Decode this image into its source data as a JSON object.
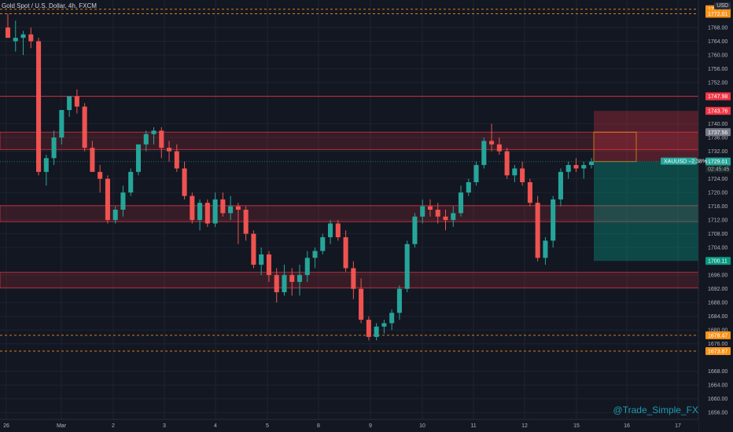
{
  "header": {
    "title": "Gold Spot / U.S. Dollar, 4h, FXCM"
  },
  "axis": {
    "currency": "USD",
    "price_labels": [
      "1768.00",
      "1764.00",
      "1760.00",
      "1756.00",
      "1752.00",
      "1740.00",
      "1736.00",
      "1732.00",
      "1724.00",
      "1720.00",
      "1716.00",
      "1712.00",
      "1708.00",
      "1704.00",
      "1696.00",
      "1692.00",
      "1688.00",
      "1684.00",
      "1680.00",
      "1676.00",
      "1668.00",
      "1664.00",
      "1660.00",
      "1656.00"
    ],
    "time_labels": [
      "26",
      "Mar",
      "2",
      "3",
      "4",
      "5",
      "8",
      "9",
      "10",
      "11",
      "12",
      "15",
      "16",
      "17"
    ]
  },
  "tags": [
    {
      "name": "price-tag-1773",
      "value": "1773.32",
      "color": "#f7931a"
    },
    {
      "name": "price-tag-1772",
      "value": "1772.01",
      "color": "#f7931a"
    },
    {
      "name": "price-tag-1747",
      "value": "1747.98",
      "color": "#f23645"
    },
    {
      "name": "price-tag-1743",
      "value": "1743.76",
      "color": "#f23645"
    },
    {
      "name": "price-tag-1737",
      "value": "1737.56",
      "color": "#787b86"
    },
    {
      "name": "price-tag-1729",
      "value": "1729.01",
      "color": "#26a69a"
    },
    {
      "name": "price-tag-1700",
      "value": "1700.11",
      "color": "#089981"
    },
    {
      "name": "price-tag-1678",
      "value": "1678.47",
      "color": "#f7931a"
    },
    {
      "name": "price-tag-1673",
      "value": "1673.87",
      "color": "#f7931a"
    }
  ],
  "current": {
    "symbol_label": "XAUUSD −2.38%",
    "countdown": "02:45:45"
  },
  "watermark": "@Trade_Simple_FX",
  "colors": {
    "up": "#26a69a",
    "down": "#ef5350",
    "zone": "#f23645",
    "target": "#089981",
    "background": "#131722"
  },
  "chart_data": {
    "type": "candlestick",
    "ohlc": [
      [
        1768,
        1772,
        1765,
        1765
      ],
      [
        1764,
        1770,
        1761,
        1765
      ],
      [
        1765,
        1767,
        1760,
        1766
      ],
      [
        1766,
        1768,
        1762,
        1764
      ],
      [
        1764,
        1765,
        1725,
        1726
      ],
      [
        1726,
        1731,
        1722,
        1730
      ],
      [
        1730,
        1738,
        1728,
        1736
      ],
      [
        1736,
        1743,
        1734,
        1744
      ],
      [
        1744,
        1748,
        1742,
        1748
      ],
      [
        1748,
        1750,
        1743,
        1745
      ],
      [
        1745,
        1746,
        1732,
        1733
      ],
      [
        1733,
        1735,
        1726,
        1726
      ],
      [
        1726,
        1728,
        1720,
        1724
      ],
      [
        1724,
        1725,
        1711,
        1712
      ],
      [
        1712,
        1716,
        1711,
        1715
      ],
      [
        1715,
        1722,
        1713,
        1720
      ],
      [
        1720,
        1727,
        1719,
        1726
      ],
      [
        1726,
        1734,
        1725,
        1734
      ],
      [
        1734,
        1738,
        1732,
        1737
      ],
      [
        1737,
        1739,
        1734,
        1738
      ],
      [
        1738,
        1739,
        1730,
        1733
      ],
      [
        1733,
        1735,
        1729,
        1732
      ],
      [
        1732,
        1734,
        1726,
        1727
      ],
      [
        1727,
        1729,
        1718,
        1719
      ],
      [
        1719,
        1720,
        1711,
        1712
      ],
      [
        1712,
        1718,
        1709,
        1717
      ],
      [
        1717,
        1718,
        1710,
        1711
      ],
      [
        1711,
        1720,
        1710,
        1718
      ],
      [
        1718,
        1720,
        1713,
        1714
      ],
      [
        1714,
        1719,
        1712,
        1716
      ],
      [
        1716,
        1717,
        1705,
        1715
      ],
      [
        1715,
        1716,
        1706,
        1708
      ],
      [
        1708,
        1709,
        1698,
        1699
      ],
      [
        1699,
        1704,
        1696,
        1702
      ],
      [
        1702,
        1703,
        1694,
        1696
      ],
      [
        1696,
        1698,
        1688,
        1691
      ],
      [
        1691,
        1699,
        1690,
        1696
      ],
      [
        1696,
        1698,
        1690,
        1694
      ],
      [
        1694,
        1699,
        1690,
        1696
      ],
      [
        1696,
        1703,
        1694,
        1701
      ],
      [
        1701,
        1704,
        1698,
        1703
      ],
      [
        1703,
        1708,
        1702,
        1707
      ],
      [
        1707,
        1712,
        1705,
        1711
      ],
      [
        1711,
        1712,
        1706,
        1707
      ],
      [
        1707,
        1709,
        1697,
        1698
      ],
      [
        1698,
        1700,
        1689,
        1692
      ],
      [
        1692,
        1695,
        1682,
        1683
      ],
      [
        1683,
        1684,
        1677,
        1678
      ],
      [
        1678,
        1682,
        1677,
        1681
      ],
      [
        1681,
        1683,
        1679,
        1682
      ],
      [
        1682,
        1686,
        1680,
        1685
      ],
      [
        1685,
        1693,
        1683,
        1692
      ],
      [
        1692,
        1706,
        1691,
        1705
      ],
      [
        1705,
        1714,
        1704,
        1713
      ],
      [
        1713,
        1718,
        1711,
        1716
      ],
      [
        1716,
        1718,
        1713,
        1715
      ],
      [
        1715,
        1717,
        1711,
        1713
      ],
      [
        1713,
        1715,
        1709,
        1712
      ],
      [
        1712,
        1716,
        1710,
        1714
      ],
      [
        1714,
        1722,
        1713,
        1720
      ],
      [
        1720,
        1724,
        1719,
        1723
      ],
      [
        1723,
        1729,
        1722,
        1728
      ],
      [
        1728,
        1736,
        1727,
        1735
      ],
      [
        1735,
        1740,
        1732,
        1734
      ],
      [
        1734,
        1736,
        1731,
        1732
      ],
      [
        1732,
        1733,
        1724,
        1725
      ],
      [
        1725,
        1728,
        1723,
        1727
      ],
      [
        1727,
        1729,
        1722,
        1723
      ],
      [
        1723,
        1724,
        1716,
        1717
      ],
      [
        1717,
        1719,
        1700,
        1701
      ],
      [
        1701,
        1707,
        1699,
        1706
      ],
      [
        1706,
        1719,
        1704,
        1718
      ],
      [
        1718,
        1727,
        1716,
        1726
      ],
      [
        1726,
        1729,
        1724,
        1728
      ],
      [
        1728,
        1730,
        1726,
        1727
      ],
      [
        1727,
        1729,
        1724,
        1728
      ],
      [
        1728,
        1730,
        1727,
        1729
      ]
    ],
    "ylim": [
      1654,
      1776
    ],
    "zones": [
      [
        1737.56,
        1732.5
      ],
      [
        1716.2,
        1711.5
      ],
      [
        1696.8,
        1692.3
      ]
    ],
    "position": {
      "entry": 1729.01,
      "stop": 1743.76,
      "target": 1700.11
    },
    "levels": [
      1773.32,
      1772.01,
      1747.98,
      1678.47,
      1673.87
    ]
  }
}
